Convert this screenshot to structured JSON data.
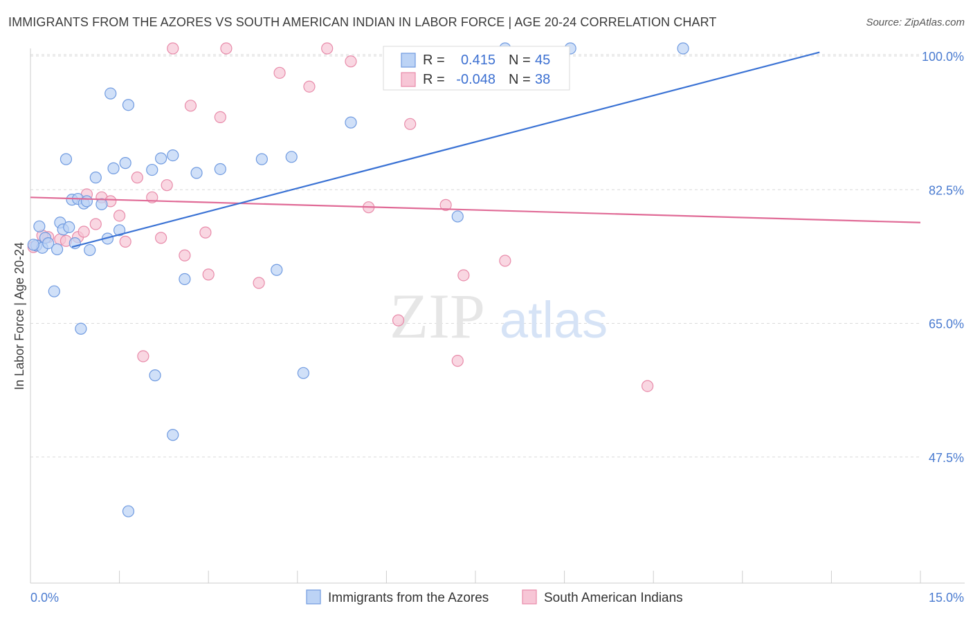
{
  "title": "IMMIGRANTS FROM THE AZORES VS SOUTH AMERICAN INDIAN IN LABOR FORCE | AGE 20-24 CORRELATION CHART",
  "source": "Source: ZipAtlas.com",
  "watermark": {
    "zip": "ZIP",
    "atlas": "atlas"
  },
  "colors": {
    "blue_fill": "#bcd3f5",
    "blue_stroke": "#6f9ae0",
    "blue_line": "#3a72d4",
    "pink_fill": "#f7c6d6",
    "pink_stroke": "#e88aa9",
    "pink_line": "#e06a96",
    "tick_text": "#4a7bd0",
    "grid": "#d9d9d9"
  },
  "legend": {
    "rows": [
      {
        "r_label": "R =",
        "r_value": "0.415",
        "n_label": "N =",
        "n_value": "45",
        "series": "blue"
      },
      {
        "r_label": "R =",
        "r_value": "-0.048",
        "n_label": "N =",
        "n_value": "38",
        "series": "pink"
      }
    ]
  },
  "chart_data": {
    "type": "scatter",
    "title": "IMMIGRANTS FROM THE AZORES VS SOUTH AMERICAN INDIAN IN LABOR FORCE | AGE 20-24 CORRELATION CHART",
    "xlabel": "",
    "ylabel": "In Labor Force | Age 20-24",
    "xlim": [
      0,
      15
    ],
    "ylim": [
      31,
      101
    ],
    "x_tick_labels": [
      "0.0%",
      "15.0%"
    ],
    "y_ticks": [
      {
        "value": 100,
        "label": "100.0%"
      },
      {
        "value": 82.5,
        "label": "82.5%"
      },
      {
        "value": 65,
        "label": "65.0%"
      },
      {
        "value": 47.5,
        "label": "47.5%"
      }
    ],
    "grid": true,
    "legend_position": "bottom",
    "series": [
      {
        "name": "Immigrants from the Azores",
        "color": "blue",
        "trend": {
          "x": [
            0.7,
            13.3
          ],
          "y": [
            75.0,
            100.5
          ]
        },
        "points": [
          [
            0.1,
            75.2
          ],
          [
            0.15,
            77.7
          ],
          [
            0.2,
            74.9
          ],
          [
            0.25,
            76.2
          ],
          [
            0.3,
            75.5
          ],
          [
            0.4,
            69.2
          ],
          [
            0.45,
            74.7
          ],
          [
            0.5,
            78.2
          ],
          [
            0.55,
            77.3
          ],
          [
            0.6,
            86.5
          ],
          [
            0.65,
            77.6
          ],
          [
            0.7,
            81.2
          ],
          [
            0.75,
            75.5
          ],
          [
            0.8,
            81.3
          ],
          [
            0.85,
            64.3
          ],
          [
            0.9,
            80.7
          ],
          [
            0.95,
            81.0
          ],
          [
            1.0,
            74.6
          ],
          [
            1.1,
            84.1
          ],
          [
            1.2,
            80.6
          ],
          [
            1.3,
            76.1
          ],
          [
            1.35,
            95.1
          ],
          [
            1.4,
            85.3
          ],
          [
            1.5,
            77.2
          ],
          [
            1.6,
            86.0
          ],
          [
            1.65,
            93.6
          ],
          [
            1.65,
            40.4
          ],
          [
            2.05,
            85.1
          ],
          [
            2.1,
            58.2
          ],
          [
            2.2,
            86.6
          ],
          [
            2.4,
            87.0
          ],
          [
            2.4,
            50.4
          ],
          [
            2.6,
            70.8
          ],
          [
            2.8,
            84.7
          ],
          [
            3.2,
            85.2
          ],
          [
            3.9,
            86.5
          ],
          [
            4.15,
            72.0
          ],
          [
            4.4,
            86.8
          ],
          [
            4.6,
            58.5
          ],
          [
            5.4,
            91.3
          ],
          [
            7.2,
            79.0
          ],
          [
            8.0,
            101.0
          ],
          [
            9.1,
            101.0
          ],
          [
            11.0,
            101.0
          ],
          [
            0.05,
            75.3
          ]
        ]
      },
      {
        "name": "South American Indians",
        "color": "pink",
        "trend": {
          "x": [
            0.0,
            15.0
          ],
          "y": [
            81.5,
            78.2
          ]
        },
        "points": [
          [
            0.05,
            75.0
          ],
          [
            0.3,
            76.3
          ],
          [
            0.5,
            76.0
          ],
          [
            0.8,
            76.3
          ],
          [
            0.9,
            77.0
          ],
          [
            0.95,
            81.9
          ],
          [
            1.1,
            78.0
          ],
          [
            1.2,
            81.5
          ],
          [
            1.35,
            81.0
          ],
          [
            1.5,
            79.1
          ],
          [
            1.6,
            75.7
          ],
          [
            1.8,
            84.1
          ],
          [
            1.9,
            60.7
          ],
          [
            2.05,
            81.5
          ],
          [
            2.2,
            76.2
          ],
          [
            2.3,
            83.1
          ],
          [
            2.4,
            101.0
          ],
          [
            2.6,
            73.9
          ],
          [
            2.7,
            93.5
          ],
          [
            2.95,
            76.9
          ],
          [
            3.0,
            71.4
          ],
          [
            3.2,
            92.0
          ],
          [
            3.3,
            101.0
          ],
          [
            3.85,
            70.3
          ],
          [
            4.2,
            97.8
          ],
          [
            4.7,
            96.0
          ],
          [
            5.0,
            101.0
          ],
          [
            5.4,
            99.3
          ],
          [
            5.7,
            80.2
          ],
          [
            6.2,
            65.4
          ],
          [
            6.4,
            91.1
          ],
          [
            7.0,
            80.5
          ],
          [
            7.2,
            60.1
          ],
          [
            7.3,
            71.3
          ],
          [
            8.0,
            73.2
          ],
          [
            10.4,
            56.8
          ],
          [
            0.2,
            76.5
          ],
          [
            0.6,
            75.8
          ]
        ]
      }
    ]
  },
  "bottom_legend": [
    {
      "label": "Immigrants from the Azores",
      "series": "blue"
    },
    {
      "label": "South American Indians",
      "series": "pink"
    }
  ]
}
